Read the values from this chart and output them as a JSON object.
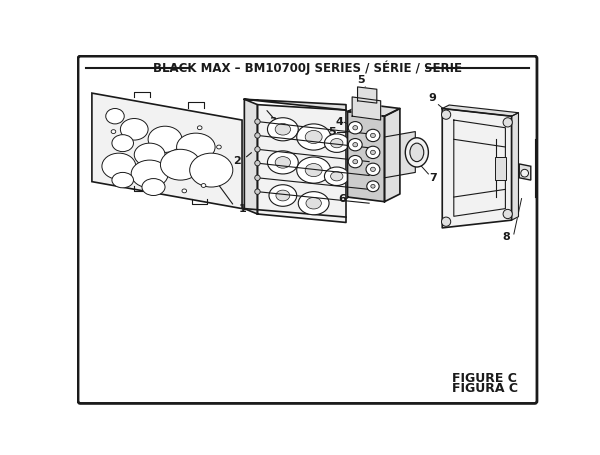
{
  "title": "BLACK MAX – BM10700J SERIES / SÉRIE / SERIE",
  "figure_label1": "FIGURE C",
  "figure_label2": "FIGURA C",
  "bg_color": "#ffffff",
  "line_color": "#1a1a1a",
  "text_color": "#1a1a1a",
  "fill_light": "#f2f2f2",
  "fill_mid": "#e0e0e0",
  "fill_dark": "#cccccc"
}
